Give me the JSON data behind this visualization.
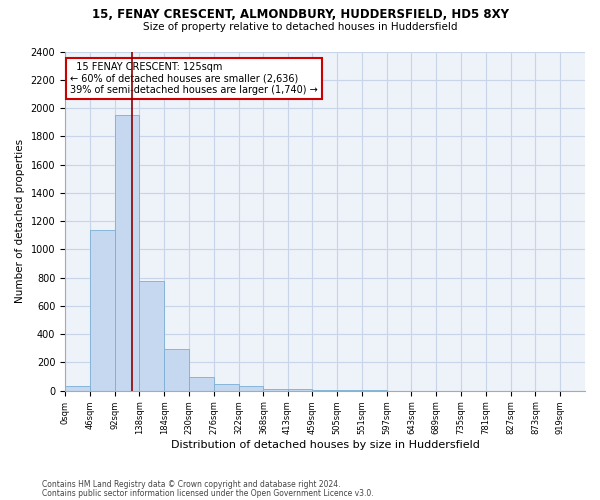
{
  "title1": "15, FENAY CRESCENT, ALMONDBURY, HUDDERSFIELD, HD5 8XY",
  "title2": "Size of property relative to detached houses in Huddersfield",
  "xlabel": "Distribution of detached houses by size in Huddersfield",
  "ylabel": "Number of detached properties",
  "bar_values": [
    35,
    1135,
    1950,
    775,
    295,
    100,
    50,
    35,
    15,
    10,
    5,
    3,
    2,
    1,
    1,
    1,
    0,
    1,
    0,
    0,
    0
  ],
  "bin_edges": [
    0,
    46,
    92,
    138,
    184,
    230,
    276,
    322,
    368,
    413,
    459,
    505,
    551,
    597,
    643,
    689,
    735,
    781,
    827,
    873,
    919,
    965
  ],
  "tick_labels": [
    "0sqm",
    "46sqm",
    "92sqm",
    "138sqm",
    "184sqm",
    "230sqm",
    "276sqm",
    "322sqm",
    "368sqm",
    "413sqm",
    "459sqm",
    "505sqm",
    "551sqm",
    "597sqm",
    "643sqm",
    "689sqm",
    "735sqm",
    "781sqm",
    "827sqm",
    "873sqm",
    "919sqm"
  ],
  "property_size": 125,
  "bar_color": "#c5d8ef",
  "bar_edge_color": "#7aafd4",
  "vline_color": "#8b0000",
  "ylim": [
    0,
    2400
  ],
  "yticks": [
    0,
    200,
    400,
    600,
    800,
    1000,
    1200,
    1400,
    1600,
    1800,
    2000,
    2200,
    2400
  ],
  "annotation_line1": "  15 FENAY CRESCENT: 125sqm  ",
  "annotation_line2": "← 60% of detached houses are smaller (2,636)",
  "annotation_line3": "39% of semi-detached houses are larger (1,740) →",
  "footer1": "Contains HM Land Registry data © Crown copyright and database right 2024.",
  "footer2": "Contains public sector information licensed under the Open Government Licence v3.0.",
  "bg_color": "#eef2f9",
  "grid_color": "#c8d4e8"
}
